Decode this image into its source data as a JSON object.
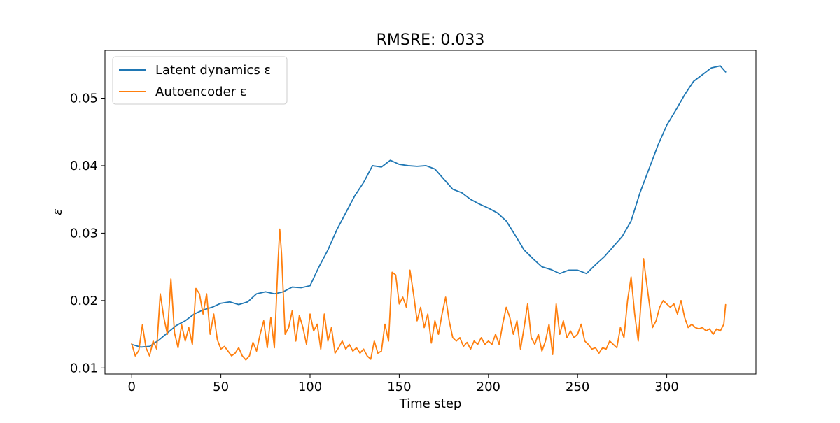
{
  "chart_data": {
    "type": "line",
    "title": "RMSRE: 0.033",
    "xlabel": "Time step",
    "ylabel": "ε",
    "xlim": [
      -15,
      350
    ],
    "ylim": [
      0.0091,
      0.0571
    ],
    "xticks": [
      0,
      50,
      100,
      150,
      200,
      250,
      300
    ],
    "yticks": [
      0.01,
      0.02,
      0.03,
      0.04,
      0.05
    ],
    "ytick_labels": [
      "0.01",
      "0.02",
      "0.03",
      "0.04",
      "0.05"
    ],
    "grid": false,
    "legend_position": "upper-left",
    "series": [
      {
        "name": "Latent dynamics ε",
        "color": "#1f77b4",
        "points": [
          [
            0,
            0.0135
          ],
          [
            5,
            0.0131
          ],
          [
            10,
            0.0132
          ],
          [
            15,
            0.0141
          ],
          [
            20,
            0.0152
          ],
          [
            25,
            0.0163
          ],
          [
            30,
            0.017
          ],
          [
            35,
            0.018
          ],
          [
            40,
            0.0186
          ],
          [
            45,
            0.019
          ],
          [
            50,
            0.0196
          ],
          [
            55,
            0.0198
          ],
          [
            60,
            0.0194
          ],
          [
            65,
            0.0198
          ],
          [
            70,
            0.021
          ],
          [
            75,
            0.0213
          ],
          [
            80,
            0.021
          ],
          [
            85,
            0.0213
          ],
          [
            90,
            0.022
          ],
          [
            95,
            0.0219
          ],
          [
            100,
            0.0222
          ],
          [
            105,
            0.025
          ],
          [
            110,
            0.0275
          ],
          [
            115,
            0.0305
          ],
          [
            120,
            0.033
          ],
          [
            125,
            0.0355
          ],
          [
            130,
            0.0375
          ],
          [
            135,
            0.04
          ],
          [
            140,
            0.0398
          ],
          [
            145,
            0.0408
          ],
          [
            150,
            0.0402
          ],
          [
            155,
            0.04
          ],
          [
            160,
            0.0399
          ],
          [
            165,
            0.04
          ],
          [
            170,
            0.0395
          ],
          [
            175,
            0.038
          ],
          [
            180,
            0.0365
          ],
          [
            185,
            0.036
          ],
          [
            190,
            0.035
          ],
          [
            195,
            0.0343
          ],
          [
            200,
            0.0337
          ],
          [
            205,
            0.033
          ],
          [
            210,
            0.0318
          ],
          [
            215,
            0.0297
          ],
          [
            220,
            0.0275
          ],
          [
            225,
            0.0262
          ],
          [
            230,
            0.025
          ],
          [
            235,
            0.0246
          ],
          [
            240,
            0.024
          ],
          [
            245,
            0.0245
          ],
          [
            250,
            0.0245
          ],
          [
            255,
            0.024
          ],
          [
            260,
            0.0253
          ],
          [
            265,
            0.0265
          ],
          [
            270,
            0.028
          ],
          [
            275,
            0.0295
          ],
          [
            280,
            0.0318
          ],
          [
            285,
            0.036
          ],
          [
            290,
            0.0395
          ],
          [
            295,
            0.043
          ],
          [
            300,
            0.046
          ],
          [
            305,
            0.0482
          ],
          [
            310,
            0.0505
          ],
          [
            315,
            0.0525
          ],
          [
            320,
            0.0535
          ],
          [
            325,
            0.0545
          ],
          [
            330,
            0.0548
          ],
          [
            333,
            0.0539
          ]
        ]
      },
      {
        "name": "Autoencoder ε",
        "color": "#ff7f0e",
        "points": [
          [
            0,
            0.0136
          ],
          [
            2,
            0.0118
          ],
          [
            4,
            0.0126
          ],
          [
            6,
            0.0164
          ],
          [
            8,
            0.013
          ],
          [
            10,
            0.0118
          ],
          [
            12,
            0.014
          ],
          [
            14,
            0.0128
          ],
          [
            16,
            0.021
          ],
          [
            18,
            0.0175
          ],
          [
            20,
            0.015
          ],
          [
            22,
            0.0232
          ],
          [
            24,
            0.0152
          ],
          [
            26,
            0.013
          ],
          [
            28,
            0.0164
          ],
          [
            30,
            0.014
          ],
          [
            32,
            0.016
          ],
          [
            34,
            0.0135
          ],
          [
            36,
            0.0218
          ],
          [
            38,
            0.021
          ],
          [
            40,
            0.018
          ],
          [
            42,
            0.021
          ],
          [
            44,
            0.015
          ],
          [
            46,
            0.018
          ],
          [
            48,
            0.0142
          ],
          [
            50,
            0.0128
          ],
          [
            52,
            0.0132
          ],
          [
            54,
            0.0125
          ],
          [
            56,
            0.0118
          ],
          [
            58,
            0.0122
          ],
          [
            60,
            0.013
          ],
          [
            62,
            0.0118
          ],
          [
            64,
            0.0112
          ],
          [
            66,
            0.0118
          ],
          [
            68,
            0.0138
          ],
          [
            70,
            0.0125
          ],
          [
            72,
            0.015
          ],
          [
            74,
            0.017
          ],
          [
            76,
            0.013
          ],
          [
            78,
            0.0175
          ],
          [
            80,
            0.013
          ],
          [
            82,
            0.0255
          ],
          [
            83,
            0.0306
          ],
          [
            84,
            0.027
          ],
          [
            86,
            0.015
          ],
          [
            88,
            0.016
          ],
          [
            90,
            0.0185
          ],
          [
            92,
            0.014
          ],
          [
            94,
            0.0178
          ],
          [
            96,
            0.016
          ],
          [
            98,
            0.0135
          ],
          [
            100,
            0.018
          ],
          [
            102,
            0.0155
          ],
          [
            104,
            0.0165
          ],
          [
            106,
            0.0128
          ],
          [
            108,
            0.018
          ],
          [
            110,
            0.014
          ],
          [
            112,
            0.016
          ],
          [
            114,
            0.0122
          ],
          [
            116,
            0.013
          ],
          [
            118,
            0.014
          ],
          [
            120,
            0.0128
          ],
          [
            122,
            0.0135
          ],
          [
            124,
            0.0125
          ],
          [
            126,
            0.013
          ],
          [
            128,
            0.0122
          ],
          [
            130,
            0.0128
          ],
          [
            132,
            0.0118
          ],
          [
            134,
            0.0113
          ],
          [
            136,
            0.014
          ],
          [
            138,
            0.0122
          ],
          [
            140,
            0.0125
          ],
          [
            142,
            0.0165
          ],
          [
            144,
            0.014
          ],
          [
            146,
            0.0242
          ],
          [
            148,
            0.0238
          ],
          [
            150,
            0.0195
          ],
          [
            152,
            0.0205
          ],
          [
            154,
            0.019
          ],
          [
            156,
            0.0245
          ],
          [
            158,
            0.021
          ],
          [
            160,
            0.017
          ],
          [
            162,
            0.019
          ],
          [
            164,
            0.016
          ],
          [
            166,
            0.018
          ],
          [
            168,
            0.0137
          ],
          [
            170,
            0.017
          ],
          [
            172,
            0.015
          ],
          [
            174,
            0.018
          ],
          [
            176,
            0.0205
          ],
          [
            178,
            0.017
          ],
          [
            180,
            0.0145
          ],
          [
            182,
            0.014
          ],
          [
            184,
            0.0145
          ],
          [
            186,
            0.0132
          ],
          [
            188,
            0.0138
          ],
          [
            190,
            0.0128
          ],
          [
            192,
            0.014
          ],
          [
            194,
            0.0135
          ],
          [
            196,
            0.0145
          ],
          [
            198,
            0.0135
          ],
          [
            200,
            0.014
          ],
          [
            202,
            0.0135
          ],
          [
            204,
            0.015
          ],
          [
            206,
            0.0135
          ],
          [
            208,
            0.0165
          ],
          [
            210,
            0.019
          ],
          [
            212,
            0.0175
          ],
          [
            214,
            0.015
          ],
          [
            216,
            0.017
          ],
          [
            218,
            0.0128
          ],
          [
            220,
            0.016
          ],
          [
            222,
            0.0195
          ],
          [
            224,
            0.0145
          ],
          [
            226,
            0.0135
          ],
          [
            228,
            0.015
          ],
          [
            230,
            0.0125
          ],
          [
            232,
            0.014
          ],
          [
            234,
            0.0165
          ],
          [
            236,
            0.012
          ],
          [
            238,
            0.0195
          ],
          [
            240,
            0.015
          ],
          [
            242,
            0.017
          ],
          [
            244,
            0.0145
          ],
          [
            246,
            0.0155
          ],
          [
            248,
            0.0145
          ],
          [
            250,
            0.015
          ],
          [
            252,
            0.0165
          ],
          [
            254,
            0.014
          ],
          [
            256,
            0.0135
          ],
          [
            258,
            0.0128
          ],
          [
            260,
            0.013
          ],
          [
            262,
            0.0122
          ],
          [
            264,
            0.013
          ],
          [
            266,
            0.0128
          ],
          [
            268,
            0.014
          ],
          [
            270,
            0.0135
          ],
          [
            272,
            0.013
          ],
          [
            274,
            0.016
          ],
          [
            276,
            0.0145
          ],
          [
            278,
            0.02
          ],
          [
            280,
            0.0235
          ],
          [
            282,
            0.018
          ],
          [
            284,
            0.014
          ],
          [
            286,
            0.0215
          ],
          [
            287,
            0.0262
          ],
          [
            288,
            0.024
          ],
          [
            290,
            0.02
          ],
          [
            292,
            0.016
          ],
          [
            294,
            0.017
          ],
          [
            296,
            0.019
          ],
          [
            298,
            0.02
          ],
          [
            300,
            0.0195
          ],
          [
            302,
            0.019
          ],
          [
            304,
            0.0195
          ],
          [
            306,
            0.018
          ],
          [
            308,
            0.02
          ],
          [
            310,
            0.0175
          ],
          [
            312,
            0.016
          ],
          [
            314,
            0.0165
          ],
          [
            316,
            0.016
          ],
          [
            318,
            0.0158
          ],
          [
            320,
            0.016
          ],
          [
            322,
            0.0155
          ],
          [
            324,
            0.0158
          ],
          [
            326,
            0.015
          ],
          [
            328,
            0.0158
          ],
          [
            330,
            0.0155
          ],
          [
            332,
            0.0165
          ],
          [
            333,
            0.0194
          ]
        ]
      }
    ]
  }
}
